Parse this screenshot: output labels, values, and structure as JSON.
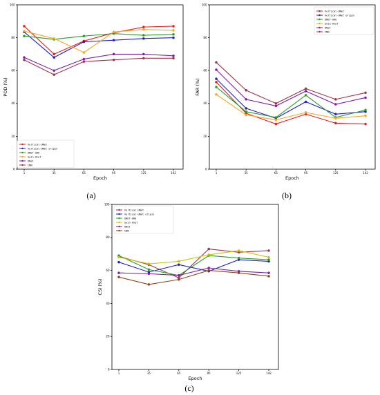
{
  "chart_data": [
    {
      "type": "line",
      "caption": "(a)",
      "xlabel": "Epoch",
      "ylabel": "POD (%)",
      "ylim": [
        0,
        100
      ],
      "yticks": [
        0,
        20,
        40,
        60,
        80,
        100
      ],
      "categories": [
        "1",
        "35",
        "65",
        "95",
        "125",
        "142"
      ],
      "grid": false,
      "legend_position": "bottom-left",
      "series": [
        {
          "name": "Vertical-UNet",
          "color": "#e41a1c",
          "values": [
            87,
            70,
            78,
            83,
            86.5,
            87
          ]
        },
        {
          "name": "Vertical-UNet origin",
          "color": "#1f1fc8",
          "values": [
            83.5,
            68,
            77.5,
            78.5,
            79.5,
            80
          ]
        },
        {
          "name": "UNET-GRU",
          "color": "#2a9a2a",
          "values": [
            81,
            79,
            81,
            82.5,
            81.5,
            82
          ]
        },
        {
          "name": "Swin-Unet",
          "color": "#f5a623",
          "values": [
            84,
            79.5,
            71,
            83.5,
            85,
            84.5
          ]
        },
        {
          "name": "UNet",
          "color": "#7b1fa2",
          "values": [
            68,
            60,
            67,
            70,
            70,
            69
          ]
        },
        {
          "name": "CNN",
          "color": "#a0324a",
          "values": [
            66.5,
            57.5,
            65.5,
            66.5,
            67.5,
            67.5
          ]
        }
      ]
    },
    {
      "type": "line",
      "caption": "(b)",
      "xlabel": "Epoch",
      "ylabel": "FAR (%)",
      "ylim": [
        0,
        100
      ],
      "yticks": [
        0,
        20,
        40,
        60,
        80,
        100
      ],
      "categories": [
        "1",
        "35",
        "65",
        "95",
        "125",
        "142"
      ],
      "grid": false,
      "legend_position": "top-right",
      "series": [
        {
          "name": "Vertical-UNet",
          "color": "#e41a1c",
          "values": [
            53,
            34,
            27.5,
            33.5,
            28,
            27.5
          ]
        },
        {
          "name": "Vertical-UNet origin",
          "color": "#1f1fc8",
          "values": [
            55,
            37,
            31,
            41,
            33.5,
            35
          ]
        },
        {
          "name": "UNET-GRU",
          "color": "#2a9a2a",
          "values": [
            50,
            35,
            31.5,
            45,
            31.5,
            36
          ]
        },
        {
          "name": "Swin-Unet",
          "color": "#f5a623",
          "values": [
            45.5,
            33,
            30,
            34.5,
            31,
            32.5
          ]
        },
        {
          "name": "UNet",
          "color": "#7b1fa2",
          "values": [
            60.5,
            42.5,
            38.5,
            47.5,
            39.5,
            43.5
          ]
        },
        {
          "name": "CNN",
          "color": "#a0324a",
          "values": [
            65,
            48,
            40,
            49,
            42.5,
            46.5
          ]
        }
      ]
    },
    {
      "type": "line",
      "caption": "(c)",
      "xlabel": "Epoch",
      "ylabel": "CSI (%)",
      "ylim": [
        0,
        100
      ],
      "yticks": [
        0,
        20,
        40,
        60,
        80,
        100
      ],
      "categories": [
        "1",
        "35",
        "65",
        "95",
        "125",
        "142"
      ],
      "grid": false,
      "legend_position": "top-left",
      "series": [
        {
          "name": "Vertical-UNet",
          "color": "#a0324a",
          "values": [
            68.5,
            63.5,
            55.5,
            73,
            71,
            72
          ]
        },
        {
          "name": "Vertical-UNet origin",
          "color": "#1f1fc8",
          "values": [
            65,
            59,
            63.5,
            59.5,
            66.5,
            65.5
          ]
        },
        {
          "name": "UNET-GRU",
          "color": "#2a9a2a",
          "values": [
            69,
            60.5,
            57,
            69,
            67.5,
            66.5
          ]
        },
        {
          "name": "Swin-Unet",
          "color": "#c9c400",
          "values": [
            68,
            64,
            65.5,
            69.5,
            72,
            68
          ]
        },
        {
          "name": "UNet",
          "color": "#7b1fa2",
          "values": [
            58.5,
            58,
            57,
            61.5,
            59.5,
            58.5
          ]
        },
        {
          "name": "CNN",
          "color": "#8b4513",
          "values": [
            56,
            51.5,
            54.5,
            60,
            58.5,
            56.5
          ]
        }
      ]
    }
  ]
}
